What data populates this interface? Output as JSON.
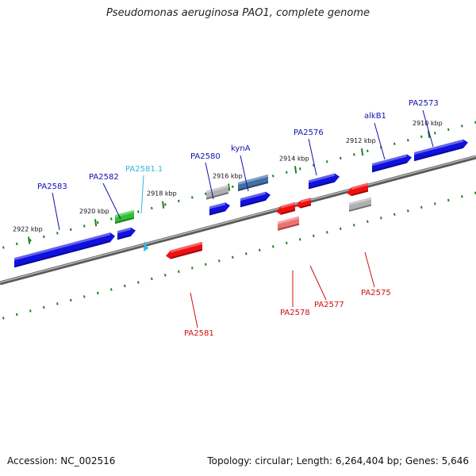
{
  "title": "Pseudomonas aeruginosa PAO1, complete genome",
  "footer": {
    "accession": "Accession: NC_002516",
    "topology": "Topology: circular; Length: 6,264,404 bp; Genes: 5,646"
  },
  "colors": {
    "forward": "#1010e0",
    "reverse": "#ee1010",
    "rna": "#30c030",
    "pseudogene": "#b0b0b0",
    "highlight": "#4070a8",
    "light_reverse": "#f07070",
    "label_forward": "#1010b0",
    "label_reverse": "#cc1010",
    "label_special": "#30b8e0",
    "backbone": "#808080",
    "ticks": "#208020"
  },
  "position_ticks": [
    {
      "label": "2922 kbp"
    },
    {
      "label": "2920 kbp"
    },
    {
      "label": "2918 kbp"
    },
    {
      "label": "2916 kbp"
    },
    {
      "label": "2914 kbp"
    },
    {
      "label": "2912 kbp"
    },
    {
      "label": "2910 kbp"
    }
  ],
  "gene_labels": [
    {
      "text": "PA2583",
      "strand": "forward"
    },
    {
      "text": "PA2582",
      "strand": "forward"
    },
    {
      "text": "PA2581.1",
      "strand": "special"
    },
    {
      "text": "PA2580",
      "strand": "forward"
    },
    {
      "text": "kynA",
      "strand": "forward"
    },
    {
      "text": "PA2576",
      "strand": "forward"
    },
    {
      "text": "alkB1",
      "strand": "forward"
    },
    {
      "text": "PA2573",
      "strand": "forward"
    },
    {
      "text": "PA2581",
      "strand": "reverse"
    },
    {
      "text": "PA2578",
      "strand": "reverse"
    },
    {
      "text": "PA2577",
      "strand": "reverse"
    },
    {
      "text": "PA2575",
      "strand": "reverse"
    }
  ]
}
